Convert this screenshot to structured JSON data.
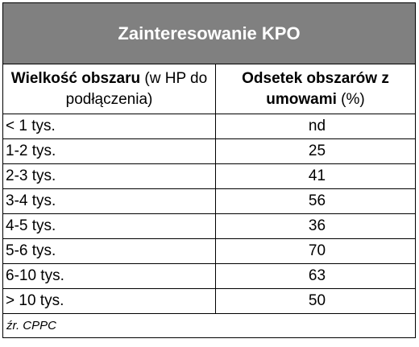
{
  "title": "Zainteresowanie KPO",
  "headers": {
    "col1_bold": "Wielkość obszaru",
    "col1_rest": " (w HP do podłączenia)",
    "col2_bold": "Odsetek obszarów z umowami",
    "col2_rest": " (%)"
  },
  "rows": [
    {
      "size": "< 1 tys.",
      "value": "nd"
    },
    {
      "size": "1-2 tys.",
      "value": "25"
    },
    {
      "size": "2-3 tys.",
      "value": "41"
    },
    {
      "size": "3-4 tys.",
      "value": "56"
    },
    {
      "size": "4-5 tys.",
      "value": "36"
    },
    {
      "size": "5-6 tys.",
      "value": "70"
    },
    {
      "size": "6-10 tys.",
      "value": "63"
    },
    {
      "size": "> 10 tys.",
      "value": "50"
    }
  ],
  "source": "źr. CPPC",
  "colors": {
    "title_background": "#808080",
    "title_text": "#ffffff",
    "border": "#000000"
  }
}
